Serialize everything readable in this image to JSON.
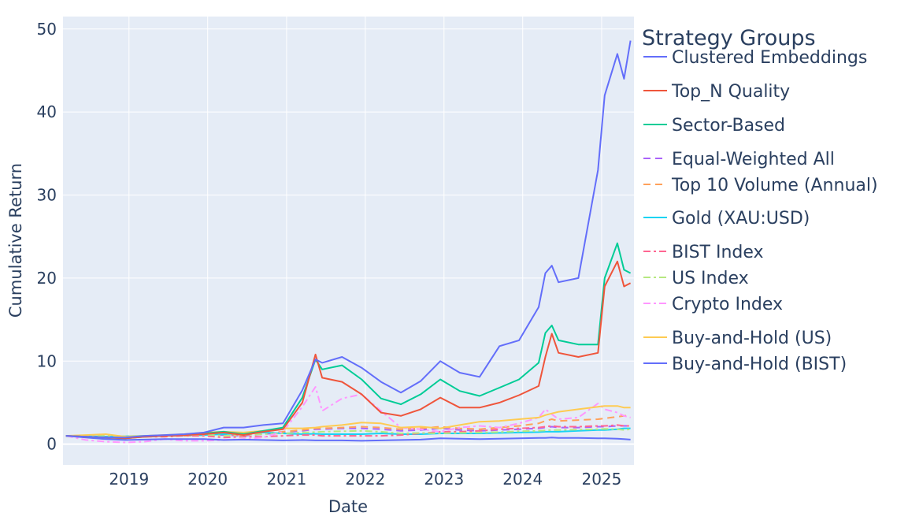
{
  "chart_data": {
    "type": "line",
    "xlabel": "Date",
    "ylabel": "Cumulative Return",
    "xlim": [
      "2018-03-01",
      "2025-05-31"
    ],
    "ylim": [
      -2.5,
      51.5
    ],
    "grid": true,
    "x_ticks": [
      "2019",
      "2020",
      "2021",
      "2022",
      "2023",
      "2024",
      "2025"
    ],
    "y_ticks": [
      0,
      10,
      20,
      30,
      40,
      50
    ],
    "legend": {
      "title": "Strategy Groups",
      "placement": "right"
    },
    "x": [
      "2018-03",
      "2018-06",
      "2018-09",
      "2018-12",
      "2019-03",
      "2019-06",
      "2019-09",
      "2019-12",
      "2020-03",
      "2020-06",
      "2020-09",
      "2020-12",
      "2021-03",
      "2021-05",
      "2021-06",
      "2021-09",
      "2021-12",
      "2022-03",
      "2022-06",
      "2022-09",
      "2022-12",
      "2023-03",
      "2023-06",
      "2023-09",
      "2023-12",
      "2024-03",
      "2024-04",
      "2024-05",
      "2024-06",
      "2024-09",
      "2024-12",
      "2025-01",
      "2025-03",
      "2025-04",
      "2025-05"
    ],
    "series": [
      {
        "name": "Clustered Embeddings",
        "color": "#636efa",
        "dash": "solid",
        "values": [
          1.0,
          0.9,
          0.8,
          0.8,
          1.0,
          1.1,
          1.2,
          1.4,
          2.0,
          2.0,
          2.3,
          2.5,
          6.5,
          10.2,
          9.8,
          10.5,
          9.2,
          7.5,
          6.2,
          7.6,
          10.0,
          8.6,
          8.1,
          11.8,
          12.5,
          16.5,
          20.6,
          21.5,
          19.5,
          20.0,
          33.0,
          42.0,
          47.0,
          44.0,
          48.6
        ]
      },
      {
        "name": "Top_N Quality",
        "color": "#ef553b",
        "dash": "solid",
        "values": [
          1.0,
          0.9,
          0.8,
          0.7,
          0.9,
          1.0,
          1.1,
          1.2,
          1.4,
          1.1,
          1.5,
          1.8,
          5.0,
          10.8,
          8.0,
          7.5,
          6.0,
          3.8,
          3.4,
          4.2,
          5.6,
          4.4,
          4.4,
          5.0,
          5.9,
          7.0,
          10.5,
          13.3,
          11.0,
          10.5,
          11.0,
          19.0,
          22.0,
          19.0,
          19.4
        ]
      },
      {
        "name": "Sector-Based",
        "color": "#00cc96",
        "dash": "solid",
        "values": [
          1.0,
          0.9,
          0.8,
          0.7,
          0.9,
          1.0,
          1.1,
          1.3,
          1.5,
          1.2,
          1.6,
          2.0,
          5.6,
          10.2,
          9.0,
          9.5,
          7.8,
          5.5,
          4.8,
          6.0,
          7.8,
          6.4,
          5.8,
          6.8,
          7.8,
          9.8,
          13.4,
          14.3,
          12.5,
          12.0,
          12.0,
          20.0,
          24.2,
          21.0,
          20.6
        ]
      },
      {
        "name": "Equal-Weighted All",
        "color": "#ab63fa",
        "dash": "dash",
        "values": [
          1.0,
          0.9,
          0.9,
          0.8,
          0.9,
          1.0,
          1.0,
          1.1,
          1.1,
          1.0,
          1.2,
          1.4,
          1.6,
          1.8,
          1.8,
          1.9,
          1.9,
          1.8,
          1.6,
          1.7,
          1.9,
          1.7,
          1.6,
          1.7,
          1.8,
          1.9,
          2.0,
          2.1,
          2.0,
          2.0,
          2.1,
          2.1,
          2.2,
          2.2,
          2.2
        ]
      },
      {
        "name": "Top 10 Volume (Annual)",
        "color": "#ffa15a",
        "dash": "dash",
        "values": [
          1.0,
          0.9,
          0.9,
          0.8,
          0.9,
          1.0,
          1.0,
          1.1,
          1.2,
          1.1,
          1.3,
          1.5,
          1.7,
          1.9,
          1.9,
          2.0,
          2.1,
          2.0,
          1.8,
          1.9,
          2.1,
          1.9,
          1.8,
          2.0,
          2.2,
          2.5,
          2.8,
          3.0,
          2.8,
          2.9,
          3.0,
          3.1,
          3.3,
          3.4,
          3.5
        ]
      },
      {
        "name": "Gold (XAU:USD)",
        "color": "#19d3f3",
        "dash": "solid",
        "values": [
          1.0,
          0.95,
          0.9,
          0.95,
          1.0,
          1.05,
          1.1,
          1.1,
          1.2,
          1.3,
          1.4,
          1.3,
          1.2,
          1.25,
          1.2,
          1.2,
          1.2,
          1.3,
          1.2,
          1.2,
          1.3,
          1.3,
          1.3,
          1.35,
          1.4,
          1.45,
          1.5,
          1.5,
          1.5,
          1.6,
          1.7,
          1.7,
          1.8,
          1.9,
          1.9
        ]
      },
      {
        "name": "BIST Index",
        "color": "#ff6692",
        "dash": "dashdot",
        "values": [
          1.0,
          0.9,
          0.8,
          0.8,
          0.9,
          0.9,
          1.0,
          1.0,
          0.8,
          0.9,
          0.9,
          1.0,
          1.1,
          1.1,
          1.0,
          1.0,
          1.0,
          1.0,
          1.1,
          1.3,
          1.5,
          1.5,
          1.6,
          1.8,
          1.9,
          2.0,
          2.1,
          2.2,
          2.1,
          2.1,
          2.2,
          2.2,
          2.3,
          2.2,
          2.2
        ]
      },
      {
        "name": "US Index",
        "color": "#b6e880",
        "dash": "dashdot",
        "values": [
          1.0,
          1.0,
          1.05,
          0.95,
          1.0,
          1.05,
          1.1,
          1.15,
          1.0,
          1.1,
          1.2,
          1.3,
          1.4,
          1.45,
          1.5,
          1.55,
          1.6,
          1.5,
          1.3,
          1.35,
          1.3,
          1.35,
          1.4,
          1.45,
          1.55,
          1.6,
          1.65,
          1.7,
          1.7,
          1.75,
          1.8,
          1.85,
          1.8,
          1.7,
          1.8
        ]
      },
      {
        "name": "Crypto Index",
        "color": "#ff97ff",
        "dash": "dashdot",
        "values": [
          1.0,
          0.5,
          0.3,
          0.2,
          0.3,
          0.6,
          0.4,
          0.4,
          0.5,
          0.6,
          0.8,
          1.5,
          4.5,
          6.9,
          4.0,
          5.5,
          6.0,
          4.0,
          2.0,
          1.8,
          1.5,
          2.0,
          2.2,
          2.0,
          2.5,
          3.2,
          4.2,
          3.6,
          3.0,
          3.2,
          4.9,
          4.2,
          3.8,
          3.4,
          3.2
        ]
      },
      {
        "name": "Buy-and-Hold (US)",
        "color": "#fecb52",
        "dash": "solid",
        "values": [
          1.0,
          1.1,
          1.2,
          0.9,
          1.0,
          1.1,
          1.2,
          1.4,
          1.5,
          1.4,
          1.6,
          1.9,
          1.9,
          2.0,
          2.1,
          2.3,
          2.6,
          2.5,
          2.0,
          2.1,
          1.9,
          2.3,
          2.7,
          2.8,
          3.0,
          3.2,
          3.5,
          3.7,
          3.9,
          4.2,
          4.5,
          4.6,
          4.6,
          4.4,
          4.4
        ]
      },
      {
        "name": "Buy-and-Hold (BIST)",
        "color": "#636efa",
        "dash": "solid",
        "values": [
          1.0,
          0.8,
          0.6,
          0.5,
          0.55,
          0.6,
          0.6,
          0.6,
          0.5,
          0.55,
          0.5,
          0.45,
          0.5,
          0.45,
          0.45,
          0.45,
          0.4,
          0.45,
          0.5,
          0.55,
          0.7,
          0.65,
          0.6,
          0.65,
          0.7,
          0.75,
          0.75,
          0.8,
          0.75,
          0.75,
          0.7,
          0.7,
          0.65,
          0.6,
          0.55
        ]
      }
    ]
  }
}
